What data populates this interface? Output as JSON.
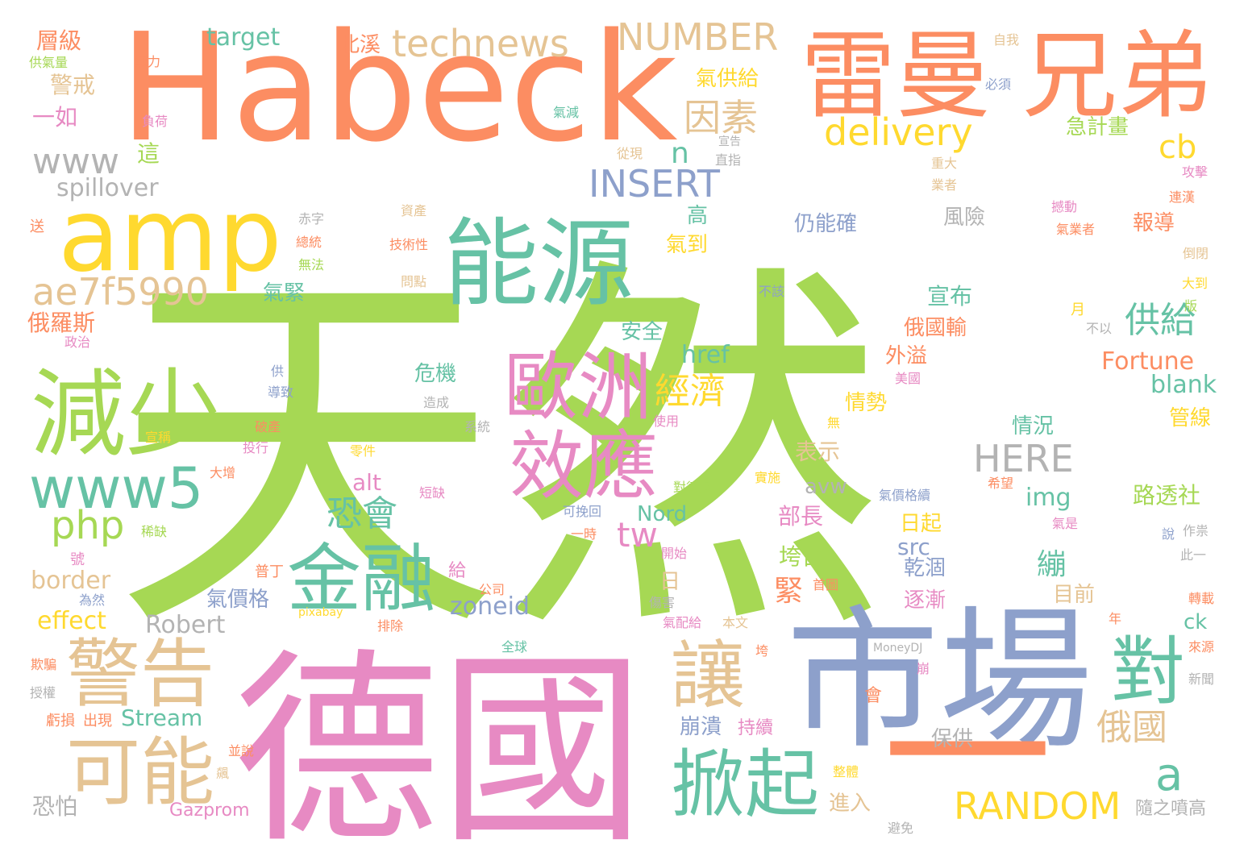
{
  "word_cloud": {
    "colors": {
      "green": "#a6d854",
      "orange": "#fc8d62",
      "blue": "#8da0cb",
      "pink": "#e78ac3",
      "teal": "#66c2a5",
      "yellow": "#ffd92f",
      "tan": "#e5c494",
      "gray": "#b3b3b3"
    },
    "words": [
      {
        "text": "天然",
        "color": "#a6d854"
      },
      {
        "text": "德國",
        "color": "#e78ac3"
      },
      {
        "text": "市場",
        "color": "#8da0cb"
      },
      {
        "text": "Habeck",
        "color": "#fc8d62"
      },
      {
        "text": "雷曼",
        "color": "#fc8d62"
      },
      {
        "text": "兄弟",
        "color": "#fc8d62"
      },
      {
        "text": "能源",
        "color": "#66c2a5"
      },
      {
        "text": "amp",
        "color": "#ffd92f"
      },
      {
        "text": "減少",
        "color": "#a6d854"
      },
      {
        "text": "歐洲",
        "color": "#e78ac3"
      },
      {
        "text": "效應",
        "color": "#e78ac3"
      },
      {
        "text": "金融",
        "color": "#66c2a5"
      },
      {
        "text": "警告",
        "color": "#e5c494"
      },
      {
        "text": "可能",
        "color": "#e5c494"
      },
      {
        "text": "掀起",
        "color": "#66c2a5"
      },
      {
        "text": "讓",
        "color": "#e5c494"
      },
      {
        "text": "對",
        "color": "#66c2a5"
      },
      {
        "text": "一",
        "color": "#fc8d62"
      },
      {
        "text": "www5",
        "color": "#66c2a5"
      },
      {
        "text": "technews",
        "color": "#e5c494"
      },
      {
        "text": "NUMBER",
        "color": "#e5c494"
      },
      {
        "text": "delivery",
        "color": "#ffd92f"
      },
      {
        "text": "RANDOM",
        "color": "#ffd92f"
      },
      {
        "text": "ae7f5990",
        "color": "#e5c494"
      },
      {
        "text": "php",
        "color": "#a6d854"
      },
      {
        "text": "INSERT",
        "color": "#8da0cb"
      },
      {
        "text": "HERE",
        "color": "#b3b3b3"
      },
      {
        "text": "www",
        "color": "#b3b3b3"
      },
      {
        "text": "因素",
        "color": "#e5c494"
      },
      {
        "text": "供給",
        "color": "#66c2a5"
      },
      {
        "text": "俄國",
        "color": "#e5c494"
      },
      {
        "text": "緊",
        "color": "#fc8d62"
      },
      {
        "text": "繃",
        "color": "#66c2a5"
      },
      {
        "text": "經濟",
        "color": "#ffd92f"
      },
      {
        "text": "恐會",
        "color": "#66c2a5"
      },
      {
        "text": "tw",
        "color": "#e78ac3"
      },
      {
        "text": "cb",
        "color": "#ffd92f"
      },
      {
        "text": "a",
        "color": "#66c2a5"
      },
      {
        "text": "n",
        "color": "#66c2a5"
      },
      {
        "text": "Robert",
        "color": "#b3b3b3"
      },
      {
        "text": "Fortune",
        "color": "#fc8d62"
      },
      {
        "text": "blank",
        "color": "#66c2a5"
      },
      {
        "text": "target",
        "color": "#66c2a5"
      },
      {
        "text": "spillover",
        "color": "#b3b3b3"
      },
      {
        "text": "border",
        "color": "#e5c494"
      },
      {
        "text": "effect",
        "color": "#ffd92f"
      },
      {
        "text": "zoneid",
        "color": "#8da0cb"
      },
      {
        "text": "img",
        "color": "#66c2a5"
      },
      {
        "text": "src",
        "color": "#8da0cb"
      },
      {
        "text": "href",
        "color": "#66c2a5"
      },
      {
        "text": "alt",
        "color": "#e78ac3"
      },
      {
        "text": "avw",
        "color": "#b3b3b3"
      },
      {
        "text": "Nord",
        "color": "#66c2a5"
      },
      {
        "text": "Stream",
        "color": "#66c2a5"
      },
      {
        "text": "Gazprom",
        "color": "#e78ac3"
      },
      {
        "text": "ck",
        "color": "#66c2a5"
      },
      {
        "text": "MoneyDJ",
        "color": "#b3b3b3"
      },
      {
        "text": "pixabay",
        "color": "#ffd92f"
      },
      {
        "text": "層級",
        "color": "#fc8d62"
      },
      {
        "text": "警戒",
        "color": "#e5c494"
      },
      {
        "text": "一如",
        "color": "#e78ac3"
      },
      {
        "text": "這",
        "color": "#a6d854"
      },
      {
        "text": "俄羅斯",
        "color": "#fc8d62"
      },
      {
        "text": "北溪",
        "color": "#fc8d62"
      },
      {
        "text": "氣供給",
        "color": "#ffd92f"
      },
      {
        "text": "急計畫",
        "color": "#a6d854"
      },
      {
        "text": "風險",
        "color": "#b3b3b3"
      },
      {
        "text": "報導",
        "color": "#fc8d62"
      },
      {
        "text": "宣布",
        "color": "#66c2a5"
      },
      {
        "text": "高",
        "color": "#66c2a5"
      },
      {
        "text": "氣到",
        "color": "#ffd92f"
      },
      {
        "text": "仍能確",
        "color": "#8da0cb"
      },
      {
        "text": "氣緊",
        "color": "#66c2a5"
      },
      {
        "text": "安全",
        "color": "#66c2a5"
      },
      {
        "text": "俄國輸",
        "color": "#fc8d62"
      },
      {
        "text": "外溢",
        "color": "#fc8d62"
      },
      {
        "text": "危機",
        "color": "#66c2a5"
      },
      {
        "text": "情勢",
        "color": "#ffd92f"
      },
      {
        "text": "情況",
        "color": "#66c2a5"
      },
      {
        "text": "管線",
        "color": "#ffd92f"
      },
      {
        "text": "表示",
        "color": "#e5c494"
      },
      {
        "text": "路透社",
        "color": "#a6d854"
      },
      {
        "text": "部長",
        "color": "#e78ac3"
      },
      {
        "text": "日起",
        "color": "#ffd92f"
      },
      {
        "text": "垮台",
        "color": "#a6d854"
      },
      {
        "text": "乾涸",
        "color": "#8da0cb"
      },
      {
        "text": "目前",
        "color": "#e5c494"
      },
      {
        "text": "日",
        "color": "#e5c494"
      },
      {
        "text": "逐漸",
        "color": "#e78ac3"
      },
      {
        "text": "氣價格",
        "color": "#8da0cb"
      },
      {
        "text": "崩潰",
        "color": "#8da0cb"
      },
      {
        "text": "持續",
        "color": "#e78ac3"
      },
      {
        "text": "保供",
        "color": "#b3b3b3"
      },
      {
        "text": "進入",
        "color": "#e5c494"
      },
      {
        "text": "會",
        "color": "#fc8d62"
      },
      {
        "text": "恐怕",
        "color": "#b3b3b3"
      },
      {
        "text": "虧損",
        "color": "#fc8d62"
      },
      {
        "text": "出現",
        "color": "#fc8d62"
      },
      {
        "text": "欺騙",
        "color": "#fc8d62"
      },
      {
        "text": "授權",
        "color": "#b3b3b3"
      },
      {
        "text": "為然",
        "color": "#8da0cb"
      },
      {
        "text": "號",
        "color": "#e78ac3"
      },
      {
        "text": "稀缺",
        "color": "#a6d854"
      },
      {
        "text": "給",
        "color": "#e78ac3"
      },
      {
        "text": "普丁",
        "color": "#fc8d62"
      },
      {
        "text": "排除",
        "color": "#fc8d62"
      },
      {
        "text": "公司",
        "color": "#fc8d62"
      },
      {
        "text": "全球",
        "color": "#66c2a5"
      },
      {
        "text": "零件",
        "color": "#ffd92f"
      },
      {
        "text": "短缺",
        "color": "#e78ac3"
      },
      {
        "text": "大增",
        "color": "#fc8d62"
      },
      {
        "text": "投行",
        "color": "#e78ac3"
      },
      {
        "text": "破產",
        "color": "#fc8d62"
      },
      {
        "text": "宣稱",
        "color": "#ffd92f"
      },
      {
        "text": "導致",
        "color": "#8da0cb"
      },
      {
        "text": "供",
        "color": "#8da0cb"
      },
      {
        "text": "政治",
        "color": "#e78ac3"
      },
      {
        "text": "造成",
        "color": "#b3b3b3"
      },
      {
        "text": "系統",
        "color": "#b3b3b3"
      },
      {
        "text": "使用",
        "color": "#e78ac3"
      },
      {
        "text": "無",
        "color": "#ffd92f"
      },
      {
        "text": "實施",
        "color": "#ffd92f"
      },
      {
        "text": "對德國",
        "color": "#a6d854"
      },
      {
        "text": "可挽回",
        "color": "#8da0cb"
      },
      {
        "text": "一時",
        "color": "#fc8d62"
      },
      {
        "text": "開始",
        "color": "#e78ac3"
      },
      {
        "text": "傷害",
        "color": "#b3b3b3"
      },
      {
        "text": "首圖",
        "color": "#fc8d62"
      },
      {
        "text": "氣配給",
        "color": "#e78ac3"
      },
      {
        "text": "本文",
        "color": "#e5c494"
      },
      {
        "text": "垮",
        "color": "#fc8d62"
      },
      {
        "text": "崩",
        "color": "#e78ac3"
      },
      {
        "text": "並說",
        "color": "#fc8d62"
      },
      {
        "text": "飆",
        "color": "#e5c494"
      },
      {
        "text": "整體",
        "color": "#ffd92f"
      },
      {
        "text": "避免",
        "color": "#b3b3b3"
      },
      {
        "text": "隨之噴高",
        "color": "#b3b3b3"
      },
      {
        "text": "新聞",
        "color": "#b3b3b3"
      },
      {
        "text": "來源",
        "color": "#fc8d62"
      },
      {
        "text": "轉載",
        "color": "#fc8d62"
      },
      {
        "text": "此一",
        "color": "#b3b3b3"
      },
      {
        "text": "作祟",
        "color": "#b3b3b3"
      },
      {
        "text": "說",
        "color": "#8da0cb"
      },
      {
        "text": "氣是",
        "color": "#e78ac3"
      },
      {
        "text": "希望",
        "color": "#fc8d62"
      },
      {
        "text": "年",
        "color": "#fc8d62"
      },
      {
        "text": "氣價格續",
        "color": "#8da0cb"
      },
      {
        "text": "美國",
        "color": "#e78ac3"
      },
      {
        "text": "不以",
        "color": "#b3b3b3"
      },
      {
        "text": "月",
        "color": "#ffd92f"
      },
      {
        "text": "大到",
        "color": "#ffd92f"
      },
      {
        "text": "版",
        "color": "#a6d854"
      },
      {
        "text": "倒閉",
        "color": "#e5c494"
      },
      {
        "text": "連漢",
        "color": "#fc8d62"
      },
      {
        "text": "攻擊",
        "color": "#e78ac3"
      },
      {
        "text": "氣業者",
        "color": "#fc8d62"
      },
      {
        "text": "撼動",
        "color": "#e78ac3"
      },
      {
        "text": "業者",
        "color": "#e5c494"
      },
      {
        "text": "重大",
        "color": "#e5c494"
      },
      {
        "text": "必須",
        "color": "#8da0cb"
      },
      {
        "text": "自我",
        "color": "#e5c494"
      },
      {
        "text": "氣減",
        "color": "#66c2a5"
      },
      {
        "text": "從現",
        "color": "#e5c494"
      },
      {
        "text": "直指",
        "color": "#b3b3b3"
      },
      {
        "text": "宣告",
        "color": "#b3b3b3"
      },
      {
        "text": "不該",
        "color": "#8da0cb"
      },
      {
        "text": "負荷",
        "color": "#e78ac3"
      },
      {
        "text": "無力",
        "color": "#fc8d62"
      },
      {
        "text": "供氣量",
        "color": "#a6d854"
      },
      {
        "text": "送",
        "color": "#fc8d62"
      },
      {
        "text": "赤字",
        "color": "#b3b3b3"
      },
      {
        "text": "總統",
        "color": "#fc8d62"
      },
      {
        "text": "無法",
        "color": "#a6d854"
      },
      {
        "text": "資產",
        "color": "#e5c494"
      },
      {
        "text": "技術性",
        "color": "#fc8d62"
      },
      {
        "text": "問點",
        "color": "#e5c494"
      }
    ]
  }
}
